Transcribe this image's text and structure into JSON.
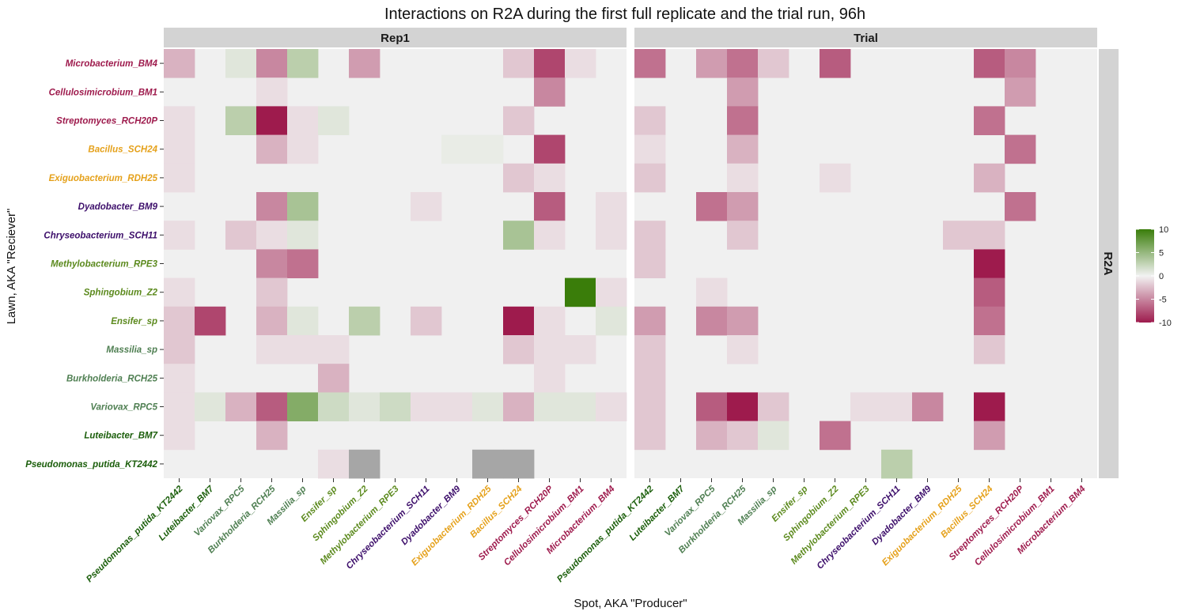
{
  "chart_data": {
    "type": "heatmap",
    "title": "Interactions on R2A during the first full replicate and the trial run, 96h",
    "xlabel": "Spot, AKA \"Producer\"",
    "ylabel": "Lawn, AKA \"Reciever\"",
    "facet_strip_right": "R2A",
    "legend": {
      "position": "right",
      "ticks": [
        "10",
        "5",
        "0",
        "-5",
        "-10"
      ],
      "range": [
        -10,
        10
      ],
      "low_color": "#9E1B4D",
      "mid_color": "#F2F2F2",
      "high_color": "#3A7D0A"
    },
    "na_color": "#A6A6A6",
    "panel_background": "#F0F0F0",
    "x_categories": [
      "Pseudomonas_putida_KT2442",
      "Luteibacter_BM7",
      "Variovax_RPC5",
      "Burkholderia_RCH25",
      "Massilia_sp",
      "Ensifer_sp",
      "Sphingobium_Z2",
      "Methylobacterium_RPE3",
      "Chryseobacterium_SCH11",
      "Dyadobacter_BM9",
      "Exiguobacterium_RDH25",
      "Bacillus_SCH24",
      "Streptomyces_RCH20P",
      "Cellulosimicrobium_BM1",
      "Microbacterium_BM4"
    ],
    "y_categories": [
      "Microbacterium_BM4",
      "Cellulosimicrobium_BM1",
      "Streptomyces_RCH20P",
      "Bacillus_SCH24",
      "Exiguobacterium_RDH25",
      "Dyadobacter_BM9",
      "Chryseobacterium_SCH11",
      "Methylobacterium_RPE3",
      "Sphingobium_Z2",
      "Ensifer_sp",
      "Massilia_sp",
      "Burkholderia_RCH25",
      "Variovax_RPC5",
      "Luteibacter_BM7",
      "Pseudomonas_putida_KT2442"
    ],
    "category_colors": {
      "Pseudomonas_putida_KT2442": "#1B5E0B",
      "Luteibacter_BM7": "#1B5E0B",
      "Variovax_RPC5": "#4F7F52",
      "Burkholderia_RCH25": "#4F7F52",
      "Massilia_sp": "#4F7F52",
      "Ensifer_sp": "#5C8A1E",
      "Sphingobium_Z2": "#5C8A1E",
      "Methylobacterium_RPE3": "#5C8A1E",
      "Chryseobacterium_SCH11": "#3D0F6B",
      "Dyadobacter_BM9": "#3D0F6B",
      "Exiguobacterium_RDH25": "#E5A11B",
      "Bacillus_SCH24": "#E5A11B",
      "Streptomyces_RCH20P": "#9E1B4D",
      "Cellulosimicrobium_BM1": "#9E1B4D",
      "Microbacterium_BM4": "#9E1B4D"
    },
    "panels": [
      {
        "name": "Rep1",
        "values": [
          [
            -3,
            0,
            1,
            -5,
            3,
            0,
            -4,
            0,
            0,
            0,
            0,
            -2,
            -8,
            -1,
            0
          ],
          [
            0,
            0,
            0,
            -1,
            0,
            0,
            0,
            0,
            0,
            0,
            0,
            0,
            -5,
            0,
            0
          ],
          [
            -1,
            0,
            3,
            -10,
            -1,
            1,
            0,
            0,
            0,
            0,
            0,
            -2,
            0,
            0,
            0
          ],
          [
            -1,
            0,
            0,
            -3,
            -1,
            0,
            0,
            0,
            0,
            0.5,
            0.5,
            0,
            -8,
            0,
            0
          ],
          [
            -1,
            0,
            0,
            0,
            0,
            0,
            0,
            0,
            0,
            0,
            0,
            -2,
            -1,
            0,
            0
          ],
          [
            0,
            0,
            0,
            -5,
            4,
            0,
            0,
            0,
            -1,
            0,
            0,
            0,
            -7,
            0,
            -1
          ],
          [
            -1,
            0,
            -2,
            -1,
            1,
            0,
            0,
            0,
            0,
            0,
            0,
            4,
            -1,
            0,
            -1
          ],
          [
            0,
            0,
            0,
            -5,
            -6,
            0,
            0,
            0,
            0,
            0,
            0,
            0,
            0,
            0,
            0
          ],
          [
            -1,
            0,
            0,
            -2,
            0,
            0,
            0,
            0,
            0,
            0,
            0,
            0,
            0,
            10,
            -1
          ],
          [
            -2,
            -8,
            0,
            -3,
            1,
            0,
            3,
            0,
            -2,
            0,
            0,
            -10,
            -1,
            0,
            1
          ],
          [
            -2,
            0,
            0,
            -1,
            -1,
            -1,
            0,
            0,
            0,
            0,
            0,
            -2,
            -1,
            -1,
            0
          ],
          [
            -1,
            0,
            0,
            0,
            0,
            -3,
            0,
            0,
            0,
            0,
            0,
            0,
            -1,
            0,
            0
          ],
          [
            -1,
            1,
            -3,
            -7,
            6,
            2,
            1,
            2,
            -1,
            -1,
            1,
            -3,
            1,
            1,
            -1
          ],
          [
            -1,
            0,
            0,
            -3,
            0,
            0,
            0,
            0,
            0,
            0,
            0,
            0,
            0,
            0,
            0
          ],
          [
            0,
            0,
            0,
            0,
            0,
            -1,
            null,
            0,
            0,
            0,
            null,
            null,
            0,
            0,
            0
          ]
        ]
      },
      {
        "name": "Trial",
        "values": [
          [
            -6,
            0,
            -4,
            -6,
            -2,
            0,
            -7,
            0,
            0,
            0,
            0,
            -7,
            -5,
            0,
            0
          ],
          [
            0,
            0,
            0,
            -4,
            0,
            0,
            0,
            0,
            0,
            0,
            0,
            0,
            -4,
            0,
            0
          ],
          [
            -2,
            0,
            0,
            -6,
            0,
            0,
            0,
            0,
            0,
            0,
            0,
            -6,
            0,
            0,
            0
          ],
          [
            -1,
            0,
            0,
            -3,
            0,
            0,
            0,
            0,
            0,
            0,
            0,
            0,
            -6,
            0,
            0
          ],
          [
            -2,
            0,
            0,
            -1,
            0,
            0,
            -1,
            0,
            0,
            0,
            0,
            -3,
            0,
            0,
            0
          ],
          [
            0,
            0,
            -6,
            -4,
            0,
            0,
            0,
            0,
            0,
            0,
            0,
            0,
            -6,
            0,
            0
          ],
          [
            -2,
            0,
            0,
            -2,
            0,
            0,
            0,
            0,
            0,
            0,
            -2,
            -2,
            0,
            0,
            0
          ],
          [
            -2,
            0,
            0,
            0,
            0,
            0,
            0,
            0,
            0,
            0,
            0,
            -10,
            0,
            0,
            0
          ],
          [
            0,
            0,
            -1,
            0,
            0,
            0,
            0,
            0,
            0,
            0,
            0,
            -7,
            0,
            0,
            0
          ],
          [
            -4,
            0,
            -5,
            -4,
            0,
            0,
            0,
            0,
            0,
            0,
            0,
            -6,
            0,
            0,
            0
          ],
          [
            -2,
            0,
            0,
            -1,
            0,
            0,
            0,
            0,
            0,
            0,
            0,
            -2,
            0,
            0,
            0
          ],
          [
            -2,
            0,
            0,
            0,
            0,
            0,
            0,
            0,
            0,
            0,
            0,
            0,
            0,
            0,
            0
          ],
          [
            -2,
            0,
            -7,
            -10,
            -2,
            0,
            0,
            -1,
            -1,
            -5,
            0,
            -10,
            0,
            0,
            0
          ],
          [
            -2,
            0,
            -3,
            -2,
            1,
            0,
            -6,
            0,
            0,
            0,
            0,
            -4,
            0,
            0,
            0
          ],
          [
            0,
            0,
            0,
            0,
            0,
            0,
            0,
            0,
            3,
            0,
            0,
            0,
            0,
            0,
            0
          ]
        ]
      }
    ]
  }
}
